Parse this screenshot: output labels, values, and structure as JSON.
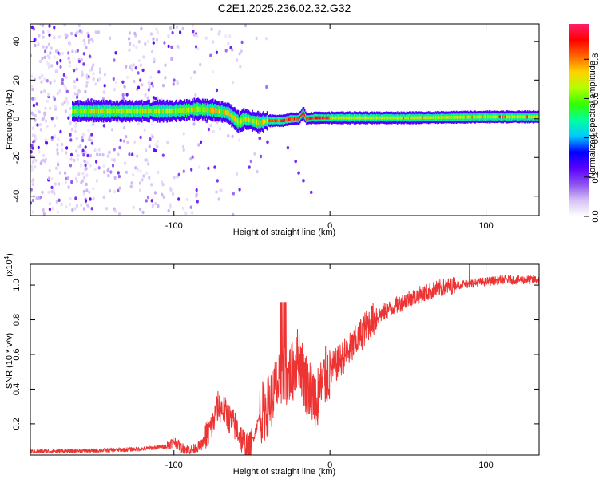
{
  "title": "C2E1.2025.236.02.32.G32",
  "chart_data": [
    {
      "type": "heatmap",
      "xlabel": "Height of straight line (km)",
      "ylabel": "Frequency (Hz)",
      "xlim": [
        -192,
        134
      ],
      "ylim": [
        -50,
        49
      ],
      "xticks": [
        -100,
        0,
        100
      ],
      "xtick_labels": [
        "-100",
        "0",
        "100"
      ],
      "yticks": [
        -40,
        -20,
        0,
        20,
        40
      ],
      "ytick_labels": [
        "-40",
        "-20",
        "0",
        "20",
        "40"
      ],
      "colorbar": {
        "label": "Normalized spectral amplitude",
        "range": [
          0.0,
          0.98
        ],
        "ticks": [
          0.0,
          0.2,
          0.4,
          0.6,
          0.8
        ],
        "tick_labels": [
          "0.0",
          "0.2",
          "0.4",
          "0.6",
          "0.8"
        ],
        "colormap": [
          "#ffffff",
          "#d6c2f5",
          "#8d50f0",
          "#5a00ff",
          "#0000ff",
          "#00c8ff",
          "#00ffa0",
          "#32ff00",
          "#b4ff00",
          "#ffd200",
          "#ff6400",
          "#ff0000",
          "#ff1e6e"
        ]
      },
      "ridge": {
        "x": [
          -160,
          -140,
          -120,
          -100,
          -85,
          -75,
          -65,
          -58,
          -55,
          -50,
          -45,
          -40,
          -30,
          -25,
          -20,
          -17,
          -15,
          -10,
          0,
          50,
          100,
          134
        ],
        "freq": [
          4,
          4,
          4,
          4,
          5,
          4.5,
          3,
          -2,
          0,
          -1,
          -2,
          -1,
          -1,
          0,
          0,
          3,
          0,
          0.5,
          0.5,
          0.5,
          1,
          1
        ]
      }
    },
    {
      "type": "line",
      "xlabel": "Height of straight line (km)",
      "ylabel": "SNR (10 * v/v)",
      "scale_label": "(x10",
      "scale_exp": "4",
      "xlim": [
        -192,
        134
      ],
      "ylim": [
        0.02,
        1.12
      ],
      "xticks": [
        -100,
        0,
        100
      ],
      "xtick_labels": [
        "-100",
        "0",
        "100"
      ],
      "yticks": [
        0.2,
        0.4,
        0.6,
        0.8,
        1.0
      ],
      "ytick_labels": [
        "0.2",
        "0.4",
        "0.6",
        "0.8",
        "1.0"
      ],
      "color": "#ee3333",
      "series": [
        {
          "name": "SNR",
          "x": [
            -192,
            -150,
            -120,
            -105,
            -100,
            -95,
            -88,
            -82,
            -75,
            -72,
            -68,
            -64,
            -60,
            -56,
            -52,
            -48,
            -45,
            -40,
            -35,
            -30,
            -27,
            -24,
            -20,
            -18,
            -16,
            -12,
            -8,
            -4,
            0,
            5,
            10,
            15,
            20,
            25,
            30,
            40,
            50,
            60,
            70,
            80,
            90,
            100,
            110,
            120,
            134
          ],
          "y": [
            0.04,
            0.045,
            0.055,
            0.07,
            0.1,
            0.06,
            0.05,
            0.08,
            0.2,
            0.3,
            0.28,
            0.22,
            0.18,
            0.1,
            0.05,
            0.15,
            0.25,
            0.3,
            0.4,
            0.45,
            0.48,
            0.5,
            0.6,
            0.52,
            0.45,
            0.38,
            0.35,
            0.45,
            0.5,
            0.55,
            0.6,
            0.65,
            0.72,
            0.78,
            0.82,
            0.87,
            0.92,
            0.95,
            0.98,
            1.0,
            1.01,
            1.02,
            1.03,
            1.03,
            1.03
          ]
        }
      ]
    }
  ]
}
